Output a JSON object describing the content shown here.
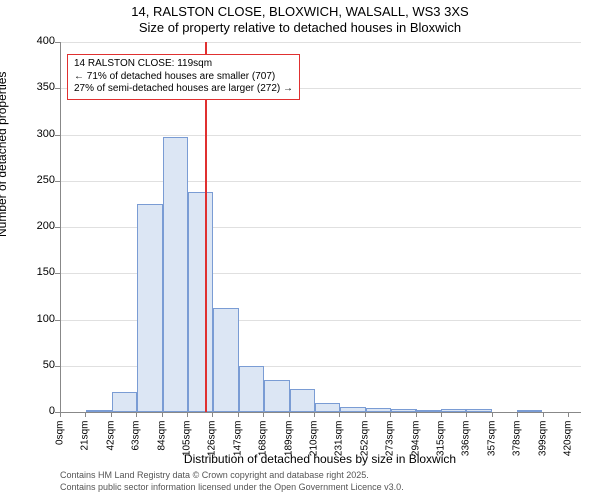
{
  "header": {
    "title": "14, RALSTON CLOSE, BLOXWICH, WALSALL, WS3 3XS",
    "subtitle": "Size of property relative to detached houses in Bloxwich"
  },
  "chart": {
    "type": "histogram",
    "ylabel": "Number of detached properties",
    "xlabel": "Distribution of detached houses by size in Bloxwich",
    "ylim": [
      0,
      400
    ],
    "ytick_step": 50,
    "xlim": [
      0,
      430
    ],
    "xtick_step": 21,
    "xtick_suffix": "sqm",
    "background_color": "#ffffff",
    "grid_color": "#e0e0e0",
    "axis_color": "#888888",
    "bar_fill": "#dce6f4",
    "bar_border": "#7a9cd4",
    "ref_line_color": "#e03030",
    "label_fontsize": 12,
    "tick_fontsize": 11,
    "bin_width": 21,
    "bins": [
      {
        "x": 0,
        "count": 0
      },
      {
        "x": 21,
        "count": 2
      },
      {
        "x": 42,
        "count": 22
      },
      {
        "x": 63,
        "count": 225
      },
      {
        "x": 84,
        "count": 297
      },
      {
        "x": 105,
        "count": 238
      },
      {
        "x": 126,
        "count": 112
      },
      {
        "x": 147,
        "count": 50
      },
      {
        "x": 168,
        "count": 35
      },
      {
        "x": 189,
        "count": 25
      },
      {
        "x": 210,
        "count": 10
      },
      {
        "x": 231,
        "count": 5
      },
      {
        "x": 252,
        "count": 4
      },
      {
        "x": 273,
        "count": 3
      },
      {
        "x": 293,
        "count": 2
      },
      {
        "x": 314,
        "count": 3
      },
      {
        "x": 335,
        "count": 3
      },
      {
        "x": 356,
        "count": 0
      },
      {
        "x": 377,
        "count": 2
      },
      {
        "x": 398,
        "count": 0
      },
      {
        "x": 419,
        "count": 0
      }
    ],
    "reference": {
      "x": 119,
      "line1": "14 RALSTON CLOSE: 119sqm",
      "line2": "← 71% of detached houses are smaller (707)",
      "line3": "27% of semi-detached houses are larger (272) →"
    }
  },
  "footer": {
    "line1": "Contains HM Land Registry data © Crown copyright and database right 2025.",
    "line2": "Contains public sector information licensed under the Open Government Licence v3.0."
  }
}
